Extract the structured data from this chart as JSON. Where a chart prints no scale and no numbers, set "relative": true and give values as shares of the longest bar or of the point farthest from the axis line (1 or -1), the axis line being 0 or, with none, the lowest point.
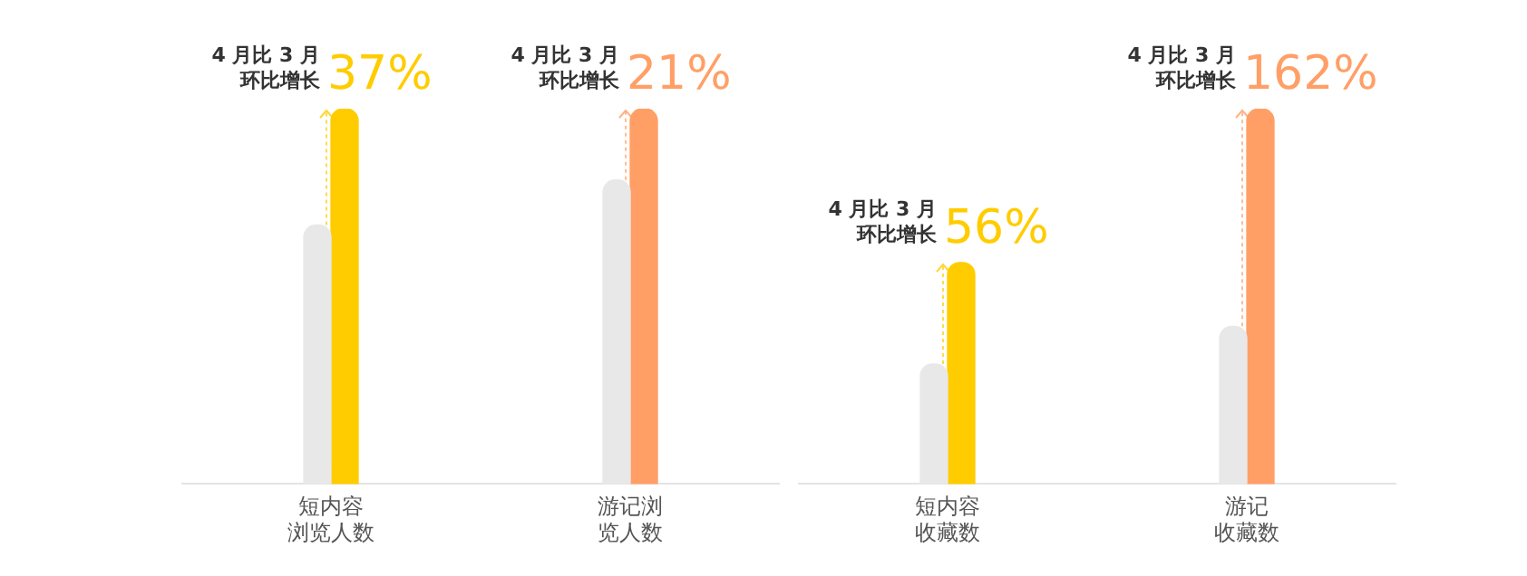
{
  "chart_data": [
    {
      "type": "bar",
      "relative": true,
      "grid": false,
      "legend": false,
      "categories": [
        "短内容浏览人数",
        "游记浏览人数"
      ],
      "series": [
        {
          "color": "#e8e8e8",
          "values": [
            0.69,
            0.81
          ]
        },
        {
          "colors": [
            "#ffcc00",
            "#ff9f66"
          ],
          "values": [
            1,
            1
          ]
        }
      ],
      "annotations": [
        {
          "text": "4 月比 3 月环比增长",
          "x": "短内容浏览人数",
          "y": 1
        },
        {
          "text": "37%",
          "x": "短内容浏览人数",
          "y": 1
        },
        {
          "text": "4 月比 3 月环比增长",
          "x": "游记浏览人数",
          "y": 1
        },
        {
          "text": "21%",
          "x": "游记浏览人数",
          "y": 1
        }
      ]
    },
    {
      "type": "bar",
      "relative": true,
      "grid": false,
      "legend": false,
      "categories": [
        "短内容收藏数",
        "游记收藏数"
      ],
      "series": [
        {
          "color": "#e8e8e8",
          "values": [
            0.32,
            0.42
          ]
        },
        {
          "colors": [
            "#ffcc00",
            "#ff9f66"
          ],
          "values": [
            0.59,
            1
          ]
        }
      ],
      "annotations": [
        {
          "text": "4 月比 3 月环比增长",
          "x": "短内容收藏数",
          "y": 0.59
        },
        {
          "text": "56%",
          "x": "短内容收藏数",
          "y": 0.59
        },
        {
          "text": "4 月比 3 月环比增长",
          "x": "游记收藏数",
          "y": 1
        },
        {
          "text": "162%",
          "x": "游记收藏数",
          "y": 1
        }
      ]
    }
  ]
}
